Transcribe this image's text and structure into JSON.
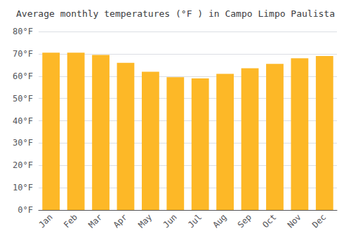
{
  "chart_data": {
    "type": "bar",
    "title": "Average monthly temperatures (°F ) in Campo Limpo Paulista",
    "categories": [
      "Jan",
      "Feb",
      "Mar",
      "Apr",
      "May",
      "Jun",
      "Jul",
      "Aug",
      "Sep",
      "Oct",
      "Nov",
      "Dec"
    ],
    "values": [
      70.5,
      70.5,
      69.5,
      66.0,
      62.0,
      59.5,
      59.0,
      61.0,
      63.5,
      65.5,
      68.0,
      69.0
    ],
    "color": "#FDB827",
    "ylim": [
      0,
      80
    ],
    "yticks": [
      {
        "value": 0,
        "label": "0°F"
      },
      {
        "value": 10,
        "label": "10°F"
      },
      {
        "value": 20,
        "label": "20°F"
      },
      {
        "value": 30,
        "label": "30°F"
      },
      {
        "value": 40,
        "label": "40°F"
      },
      {
        "value": 50,
        "label": "50°F"
      },
      {
        "value": 60,
        "label": "60°F"
      },
      {
        "value": 70,
        "label": "70°F"
      },
      {
        "value": 80,
        "label": "80°F"
      }
    ],
    "grid": true
  }
}
